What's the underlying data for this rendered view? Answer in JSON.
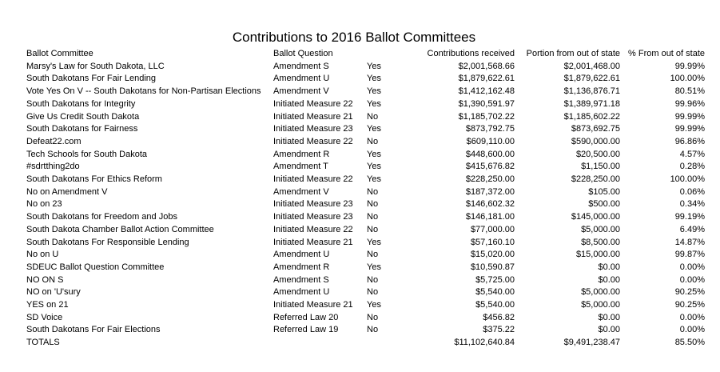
{
  "title": "Contributions to 2016 Ballot Committees",
  "headers": {
    "committee": "Ballot Committee",
    "question": "Ballot Question",
    "position": "",
    "received": "Contributions received",
    "out_of_state": "Portion from out of state",
    "pct": "% From out of state"
  },
  "rows": [
    {
      "committee": "Marsy's Law for South Dakota, LLC",
      "question": "Amendment S",
      "position": "Yes",
      "received": "$2,001,568.66",
      "out_of_state": "$2,001,468.00",
      "pct": "99.99%"
    },
    {
      "committee": "South Dakotans For Fair Lending",
      "question": "Amendment U",
      "position": "Yes",
      "received": "$1,879,622.61",
      "out_of_state": "$1,879,622.61",
      "pct": "100.00%"
    },
    {
      "committee": "Vote Yes On V -- South Dakotans for Non-Partisan Elections",
      "question": "Amendment V",
      "position": "Yes",
      "received": "$1,412,162.48",
      "out_of_state": "$1,136,876.71",
      "pct": "80.51%"
    },
    {
      "committee": "South Dakotans for Integrity",
      "question": "Initiated Measure 22",
      "position": "Yes",
      "received": "$1,390,591.97",
      "out_of_state": "$1,389,971.18",
      "pct": "99.96%"
    },
    {
      "committee": "Give Us Credit South Dakota",
      "question": "Initiated Measure 21",
      "position": "No",
      "received": "$1,185,702.22",
      "out_of_state": "$1,185,602.22",
      "pct": "99.99%"
    },
    {
      "committee": "South Dakotans for Fairness",
      "question": "Initiated Measure 23",
      "position": "Yes",
      "received": "$873,792.75",
      "out_of_state": "$873,692.75",
      "pct": "99.99%"
    },
    {
      "committee": "Defeat22.com",
      "question": "Initiated Measure 22",
      "position": "No",
      "received": "$609,110.00",
      "out_of_state": "$590,000.00",
      "pct": "96.86%"
    },
    {
      "committee": "Tech Schools for South Dakota",
      "question": "Amendment R",
      "position": "Yes",
      "received": "$448,600.00",
      "out_of_state": "$20,500.00",
      "pct": "4.57%"
    },
    {
      "committee": "#sdrtthing2do",
      "question": "Amendment T",
      "position": "Yes",
      "received": "$415,676.82",
      "out_of_state": "$1,150.00",
      "pct": "0.28%"
    },
    {
      "committee": "South Dakotans For Ethics Reform",
      "question": "Initiated Measure 22",
      "position": "Yes",
      "received": "$228,250.00",
      "out_of_state": "$228,250.00",
      "pct": "100.00%"
    },
    {
      "committee": "No on Amendment V",
      "question": "Amendment V",
      "position": "No",
      "received": "$187,372.00",
      "out_of_state": "$105.00",
      "pct": "0.06%"
    },
    {
      "committee": "No on 23",
      "question": "Initiated Measure 23",
      "position": "No",
      "received": "$146,602.32",
      "out_of_state": "$500.00",
      "pct": "0.34%"
    },
    {
      "committee": "South Dakotans for Freedom and Jobs",
      "question": "Initiated Measure 23",
      "position": "No",
      "received": "$146,181.00",
      "out_of_state": "$145,000.00",
      "pct": "99.19%"
    },
    {
      "committee": "South Dakota Chamber Ballot Action Committee",
      "question": "Initiated Measure 22",
      "position": "No",
      "received": "$77,000.00",
      "out_of_state": "$5,000.00",
      "pct": "6.49%"
    },
    {
      "committee": "South Dakotans For Responsible Lending",
      "question": "Initiated Measure 21",
      "position": "Yes",
      "received": "$57,160.10",
      "out_of_state": "$8,500.00",
      "pct": "14.87%"
    },
    {
      "committee": "No on U",
      "question": "Amendment U",
      "position": "No",
      "received": "$15,020.00",
      "out_of_state": "$15,000.00",
      "pct": "99.87%"
    },
    {
      "committee": "SDEUC Ballot Question Committee",
      "question": "Amendment R",
      "position": "Yes",
      "received": "$10,590.87",
      "out_of_state": "$0.00",
      "pct": "0.00%"
    },
    {
      "committee": "NO ON S",
      "question": "Amendment S",
      "position": "No",
      "received": "$5,725.00",
      "out_of_state": "$0.00",
      "pct": "0.00%"
    },
    {
      "committee": "NO on 'U'sury",
      "question": "Amendment U",
      "position": "No",
      "received": "$5,540.00",
      "out_of_state": "$5,000.00",
      "pct": "90.25%"
    },
    {
      "committee": "YES on 21",
      "question": "Initiated Measure 21",
      "position": "Yes",
      "received": "$5,540.00",
      "out_of_state": "$5,000.00",
      "pct": "90.25%"
    },
    {
      "committee": "SD Voice",
      "question": "Referred Law 20",
      "position": "No",
      "received": "$456.82",
      "out_of_state": "$0.00",
      "pct": "0.00%"
    },
    {
      "committee": "South Dakotans For Fair Elections",
      "question": "Referred Law 19",
      "position": "No",
      "received": "$375.22",
      "out_of_state": "$0.00",
      "pct": "0.00%"
    }
  ],
  "totals": {
    "label": "TOTALS",
    "received": "$11,102,640.84",
    "out_of_state": "$9,491,238.47",
    "pct": "85.50%"
  }
}
